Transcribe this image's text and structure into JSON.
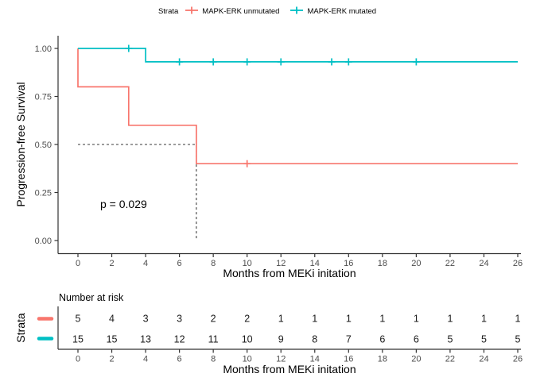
{
  "chart_data": {
    "type": "line",
    "kind": "kaplan-meier-step-curves",
    "title": "",
    "xlabel": "Months from MEKi initation",
    "ylabel": "Progression-free Survival",
    "xlim": [
      0,
      26
    ],
    "ylim": [
      0,
      1
    ],
    "xticks": [
      0,
      2,
      4,
      6,
      8,
      10,
      12,
      14,
      16,
      18,
      20,
      22,
      24,
      26
    ],
    "yticks": [
      0,
      0.25,
      0.5,
      0.75,
      1
    ],
    "ytick_labels": [
      "0.00",
      "0.25",
      "0.50",
      "0.75",
      "1.00"
    ],
    "grid": false,
    "legend_position": "top",
    "legend_title": "Strata",
    "p_value": "p = 0.029",
    "median_guide": {
      "x": 7,
      "y": 0.5
    },
    "guide_color": "#3a3a3a",
    "axis_color": "#333333",
    "series": [
      {
        "name": "MAPK-ERK unmutated",
        "color": "#F8766D",
        "steps": [
          [
            0,
            1
          ],
          [
            0,
            0.8
          ],
          [
            3,
            0.8
          ],
          [
            3,
            0.6
          ],
          [
            7,
            0.6
          ],
          [
            7,
            0.4
          ],
          [
            26,
            0.4
          ]
        ],
        "censor_marks": [
          [
            10,
            0.4
          ]
        ]
      },
      {
        "name": "MAPK-ERK mutated",
        "color": "#00BFC4",
        "steps": [
          [
            0,
            1
          ],
          [
            4,
            1
          ],
          [
            4,
            0.93
          ],
          [
            26,
            0.93
          ]
        ],
        "censor_marks": [
          [
            3,
            1
          ],
          [
            6,
            0.93
          ],
          [
            8,
            0.93
          ],
          [
            10,
            0.93
          ],
          [
            12,
            0.93
          ],
          [
            15,
            0.93
          ],
          [
            16,
            0.93
          ],
          [
            20,
            0.93
          ]
        ]
      }
    ],
    "risk_table": {
      "title": "Number at risk",
      "ylabel": "Strata",
      "xlabel": "Months from MEKi initation",
      "months": [
        0,
        2,
        4,
        6,
        8,
        10,
        12,
        14,
        16,
        18,
        20,
        22,
        24,
        26
      ],
      "rows": [
        {
          "name": "MAPK-ERK unmutated",
          "color": "#F8766D",
          "counts": [
            5,
            4,
            3,
            3,
            2,
            2,
            1,
            1,
            1,
            1,
            1,
            1,
            1,
            1
          ]
        },
        {
          "name": "MAPK-ERK mutated",
          "color": "#00BFC4",
          "counts": [
            15,
            15,
            13,
            12,
            11,
            10,
            9,
            8,
            7,
            6,
            6,
            5,
            5,
            5
          ]
        }
      ]
    }
  }
}
